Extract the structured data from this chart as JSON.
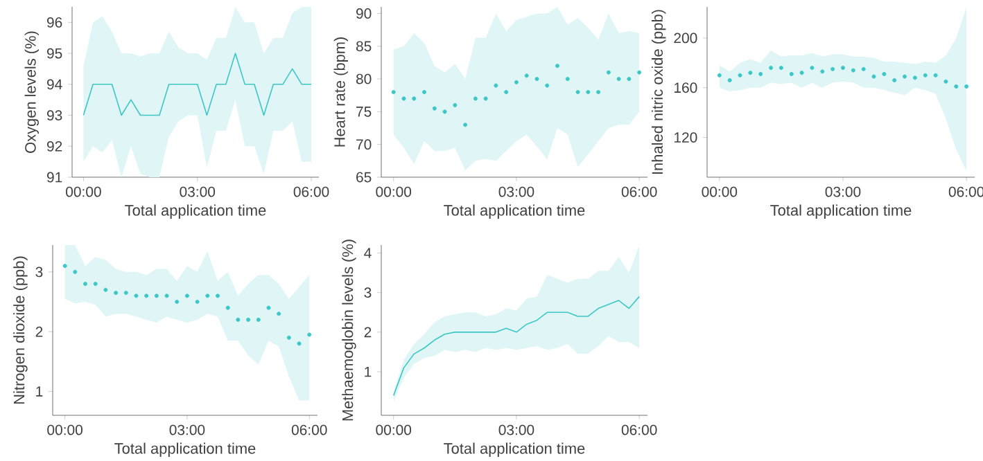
{
  "chart_data": [
    {
      "type": "line",
      "xlabel": "Total application time",
      "ylabel": "Oxygen levels (%)",
      "x": [
        0,
        0.25,
        0.5,
        0.75,
        1,
        1.25,
        1.5,
        1.75,
        2,
        2.25,
        2.5,
        2.75,
        3,
        3.25,
        3.5,
        3.75,
        4,
        4.25,
        4.5,
        4.75,
        5,
        5.25,
        5.5,
        5.75,
        6
      ],
      "xlim": [
        -0.3,
        6.2
      ],
      "xticks": [
        {
          "value": 0,
          "label": "00:00"
        },
        {
          "value": 3,
          "label": "03:00"
        },
        {
          "value": 6,
          "label": "06:00"
        }
      ],
      "ylim": [
        91,
        96.5
      ],
      "yticks": [
        91,
        92,
        93,
        94,
        95,
        96
      ],
      "series": [
        {
          "color": "#3cc6c6",
          "values": [
            93,
            94,
            94,
            94,
            93,
            93.5,
            93,
            93,
            93,
            94,
            94,
            94,
            94,
            93,
            94,
            94,
            95,
            94,
            94,
            93,
            94,
            94,
            94.5,
            94,
            94
          ],
          "upper": [
            94.6,
            96,
            96.2,
            95.7,
            95,
            95,
            94.9,
            95,
            95,
            95.7,
            95.2,
            95,
            95,
            94.8,
            95.5,
            95.5,
            96.5,
            96,
            96,
            95,
            95.5,
            95.5,
            96.3,
            96.5,
            96.5
          ],
          "lower": [
            91.5,
            92,
            91.8,
            92.2,
            91,
            92,
            91.1,
            91,
            91,
            92.3,
            92.8,
            93,
            93,
            91.3,
            92.5,
            92.5,
            93.5,
            92,
            92,
            91.1,
            92.5,
            92.5,
            92.8,
            91.5,
            91.5
          ]
        }
      ]
    },
    {
      "type": "scatter",
      "marker": "circle",
      "xlabel": "Total application time",
      "ylabel": "Heart rate (bpm)",
      "x": [
        0,
        0.25,
        0.5,
        0.75,
        1,
        1.25,
        1.5,
        1.75,
        2,
        2.25,
        2.5,
        2.75,
        3,
        3.25,
        3.5,
        3.75,
        4,
        4.25,
        4.5,
        4.75,
        5,
        5.25,
        5.5,
        5.75,
        6
      ],
      "xlim": [
        -0.3,
        6.2
      ],
      "xticks": [
        {
          "value": 0,
          "label": "00:00"
        },
        {
          "value": 3,
          "label": "03:00"
        },
        {
          "value": 6,
          "label": "06:00"
        }
      ],
      "ylim": [
        65,
        91
      ],
      "yticks": [
        65,
        70,
        75,
        80,
        85,
        90
      ],
      "series": [
        {
          "color": "#3cc6c6",
          "values": [
            78,
            77,
            77,
            78,
            75.5,
            75,
            76,
            73,
            77,
            77,
            79,
            78,
            79.5,
            80.5,
            80,
            79,
            82,
            80,
            78,
            78,
            78,
            81,
            80,
            80,
            81
          ],
          "upper": [
            84.5,
            85,
            87,
            85.5,
            82,
            81,
            82.3,
            80,
            86.3,
            86.3,
            90,
            87.3,
            89,
            89.5,
            90,
            90,
            91,
            88.3,
            89.3,
            87.8,
            86,
            90,
            87,
            87.3,
            87
          ],
          "lower": [
            71.5,
            69.5,
            67,
            70.5,
            69,
            69,
            69.5,
            66,
            67.5,
            67.8,
            67.5,
            69,
            70.5,
            71.5,
            69.7,
            67.7,
            72.5,
            71.5,
            66.5,
            68.5,
            70.5,
            72.5,
            73,
            73,
            75
          ]
        }
      ]
    },
    {
      "type": "scatter",
      "marker": "circle",
      "xlabel": "Total application time",
      "ylabel": "Inhaled nitric oxide (ppb)",
      "x": [
        0,
        0.25,
        0.5,
        0.75,
        1,
        1.25,
        1.5,
        1.75,
        2,
        2.25,
        2.5,
        2.75,
        3,
        3.25,
        3.5,
        3.75,
        4,
        4.25,
        4.5,
        4.75,
        5,
        5.25,
        5.5,
        5.75,
        6
      ],
      "xlim": [
        -0.3,
        6.2
      ],
      "xticks": [
        {
          "value": 0,
          "label": "00:00"
        },
        {
          "value": 3,
          "label": "03:00"
        },
        {
          "value": 6,
          "label": "06:00"
        }
      ],
      "ylim": [
        88,
        225
      ],
      "yticks": [
        120,
        160,
        200
      ],
      "series": [
        {
          "color": "#3cc6c6",
          "values": [
            170,
            166,
            170,
            172,
            171,
            176,
            176,
            171,
            172,
            176,
            173,
            175,
            176,
            174,
            175,
            169,
            171,
            166,
            169,
            168,
            170,
            170,
            165,
            161,
            161
          ],
          "upper": [
            178,
            173,
            180,
            183,
            180,
            190,
            185,
            186,
            186,
            188,
            185,
            187,
            187,
            185,
            185,
            184,
            181,
            181,
            180,
            179,
            181,
            180,
            186,
            200,
            225
          ],
          "lower": [
            160,
            157,
            158,
            160,
            160,
            164,
            163,
            164,
            160,
            164,
            160,
            164,
            165,
            164,
            160,
            160,
            158,
            156,
            154,
            160,
            158,
            155,
            135,
            110,
            93
          ]
        }
      ]
    },
    {
      "type": "scatter",
      "marker": "circle",
      "xlabel": "Total application time",
      "ylabel": "Nitrogen dioxide (ppb)",
      "x": [
        0,
        0.25,
        0.5,
        0.75,
        1,
        1.25,
        1.5,
        1.75,
        2,
        2.25,
        2.5,
        2.75,
        3,
        3.25,
        3.5,
        3.75,
        4,
        4.25,
        4.5,
        4.75,
        5,
        5.25,
        5.5,
        5.75,
        6
      ],
      "xlim": [
        -0.3,
        6.2
      ],
      "xticks": [
        {
          "value": 0,
          "label": "00:00"
        },
        {
          "value": 3,
          "label": "03:00"
        },
        {
          "value": 6,
          "label": "06:00"
        }
      ],
      "ylim": [
        0.6,
        3.45
      ],
      "yticks": [
        1,
        2,
        3
      ],
      "series": [
        {
          "color": "#3cc6c6",
          "values": [
            3.1,
            3.0,
            2.8,
            2.8,
            2.7,
            2.65,
            2.65,
            2.6,
            2.6,
            2.6,
            2.6,
            2.5,
            2.6,
            2.5,
            2.6,
            2.6,
            2.4,
            2.2,
            2.2,
            2.2,
            2.4,
            2.3,
            1.9,
            1.8,
            1.95
          ],
          "upper": [
            3.45,
            3.45,
            3.1,
            3.25,
            3.2,
            3.05,
            3.0,
            3.0,
            2.95,
            3.05,
            3.05,
            2.85,
            3.1,
            3.0,
            3.35,
            2.85,
            3.0,
            2.6,
            2.8,
            2.95,
            2.95,
            2.8,
            2.55,
            2.75,
            2.95
          ],
          "lower": [
            2.55,
            2.47,
            2.5,
            2.45,
            2.25,
            2.3,
            2.3,
            2.25,
            2.2,
            2.15,
            2.25,
            2.2,
            2.15,
            2.2,
            2.3,
            2.25,
            1.85,
            1.85,
            1.6,
            1.45,
            1.85,
            1.75,
            1.25,
            0.85,
            0.85
          ]
        }
      ]
    },
    {
      "type": "line",
      "xlabel": "Total application time",
      "ylabel": "Methaemoglobin levels (%)",
      "x": [
        0,
        0.25,
        0.5,
        0.75,
        1,
        1.25,
        1.5,
        1.75,
        2,
        2.25,
        2.5,
        2.75,
        3,
        3.25,
        3.5,
        3.75,
        4,
        4.25,
        4.5,
        4.75,
        5,
        5.25,
        5.5,
        5.75,
        6
      ],
      "xlim": [
        -0.3,
        6.2
      ],
      "xticks": [
        {
          "value": 0,
          "label": "00:00"
        },
        {
          "value": 3,
          "label": "03:00"
        },
        {
          "value": 6,
          "label": "06:00"
        }
      ],
      "ylim": [
        -0.1,
        4.2
      ],
      "yticks": [
        1,
        2,
        3,
        4
      ],
      "series": [
        {
          "color": "#3cc6c6",
          "values": [
            0.4,
            1.1,
            1.45,
            1.6,
            1.8,
            1.95,
            2.0,
            2.0,
            2.0,
            2.0,
            2.0,
            2.1,
            2.0,
            2.2,
            2.3,
            2.5,
            2.5,
            2.5,
            2.4,
            2.4,
            2.6,
            2.7,
            2.8,
            2.6,
            2.9
          ],
          "upper": [
            0.5,
            1.3,
            1.7,
            1.95,
            2.25,
            2.4,
            2.45,
            2.5,
            2.5,
            2.4,
            2.45,
            2.6,
            2.55,
            2.85,
            2.9,
            3.45,
            3.35,
            3.25,
            3.35,
            3.35,
            3.55,
            3.55,
            3.9,
            3.5,
            4.2
          ],
          "lower": [
            0.25,
            0.85,
            1.2,
            1.35,
            1.4,
            1.55,
            1.5,
            1.55,
            1.5,
            1.6,
            1.55,
            1.6,
            1.55,
            1.6,
            1.65,
            1.55,
            1.6,
            1.7,
            1.45,
            1.45,
            1.65,
            1.9,
            1.75,
            1.75,
            1.6
          ]
        }
      ]
    }
  ]
}
